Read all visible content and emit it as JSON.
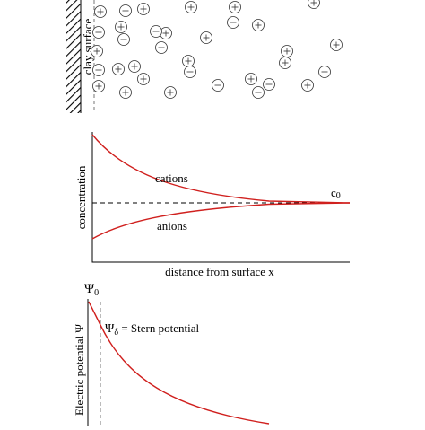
{
  "panels": {
    "surface": {
      "wall_label": "clay surface"
    },
    "concentration": {
      "y_label": "concentration",
      "x_label": "distance from surface x",
      "cation_label": "cations",
      "anion_label": "anions",
      "bulk_label": {
        "symbol": "c",
        "subscript": "0"
      }
    },
    "potential": {
      "y_label": "Electric potential Ψ",
      "surface_label": {
        "symbol": "Ψ",
        "subscript": "0"
      },
      "stern_label": {
        "symbol": "Ψ",
        "subscript": "δ",
        "text": " = Stern potential"
      }
    }
  }
}
